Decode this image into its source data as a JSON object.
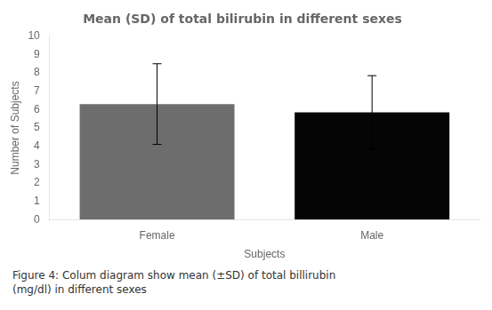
{
  "chart_data": {
    "type": "bar",
    "title": "Mean (SD) of total bilirubin in different sexes",
    "categories": [
      "Female",
      "Male"
    ],
    "values": [
      6.3,
      5.85
    ],
    "errors": [
      2.2,
      2.0
    ],
    "colors": [
      "#6d6d6d",
      "#050505"
    ],
    "xlabel": "Subjects",
    "ylabel": "Number of Subjects",
    "ylim": [
      0,
      10
    ],
    "yticks": [
      0,
      1,
      2,
      3,
      4,
      5,
      6,
      7,
      8,
      9,
      10
    ],
    "grid": false,
    "caption": "Figure 4:  Colum diagram show mean (±SD) of total billirubin\n(mg/dl) in different sexes"
  }
}
